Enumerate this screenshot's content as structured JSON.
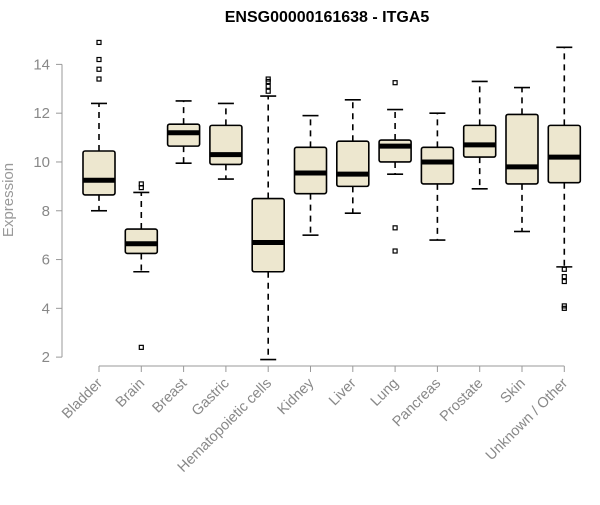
{
  "chart_data": {
    "type": "boxplot",
    "title": "ENSG00000161638 - ITGA5",
    "ylabel": "Expression",
    "xlabel": "",
    "ylim": [
      1.6,
      15.2
    ],
    "yticks": [
      2,
      4,
      6,
      8,
      10,
      12,
      14
    ],
    "grid": false,
    "legend": "none",
    "colors": {
      "box_fill": "#ede7cf",
      "stroke": "#000000",
      "axis_text": "#888888"
    },
    "categories": [
      "Bladder",
      "Brain",
      "Breast",
      "Gastric",
      "Hematopoietic cells",
      "Kidney",
      "Liver",
      "Lung",
      "Pancreas",
      "Prostate",
      "Skin",
      "Unknown / Other"
    ],
    "boxes": [
      {
        "q1": 8.65,
        "median": 9.25,
        "q3": 10.45,
        "whisker_low": 8.0,
        "whisker_high": 12.4,
        "outliers": [
          13.4,
          13.8,
          14.2,
          14.9
        ]
      },
      {
        "q1": 6.25,
        "median": 6.65,
        "q3": 7.25,
        "whisker_low": 5.5,
        "whisker_high": 8.75,
        "outliers": [
          2.4,
          8.95,
          9.1
        ]
      },
      {
        "q1": 10.65,
        "median": 11.2,
        "q3": 11.55,
        "whisker_low": 9.95,
        "whisker_high": 12.5,
        "outliers": []
      },
      {
        "q1": 9.9,
        "median": 10.3,
        "q3": 11.5,
        "whisker_low": 9.3,
        "whisker_high": 12.4,
        "outliers": []
      },
      {
        "q1": 5.5,
        "median": 6.7,
        "q3": 8.5,
        "whisker_low": 1.9,
        "whisker_high": 12.7,
        "outliers": [
          12.9,
          13.1,
          13.3,
          13.4
        ]
      },
      {
        "q1": 8.7,
        "median": 9.55,
        "q3": 10.6,
        "whisker_low": 7.0,
        "whisker_high": 11.9,
        "outliers": []
      },
      {
        "q1": 9.0,
        "median": 9.5,
        "q3": 10.85,
        "whisker_low": 7.9,
        "whisker_high": 12.55,
        "outliers": []
      },
      {
        "q1": 10.0,
        "median": 10.65,
        "q3": 10.9,
        "whisker_low": 9.5,
        "whisker_high": 12.15,
        "outliers": [
          13.25,
          7.3,
          6.35
        ]
      },
      {
        "q1": 9.1,
        "median": 10.0,
        "q3": 10.6,
        "whisker_low": 6.8,
        "whisker_high": 12.0,
        "outliers": []
      },
      {
        "q1": 10.2,
        "median": 10.7,
        "q3": 11.5,
        "whisker_low": 8.9,
        "whisker_high": 13.3,
        "outliers": []
      },
      {
        "q1": 9.1,
        "median": 9.8,
        "q3": 11.95,
        "whisker_low": 7.15,
        "whisker_high": 13.05,
        "outliers": []
      },
      {
        "q1": 9.15,
        "median": 10.2,
        "q3": 11.5,
        "whisker_low": 5.7,
        "whisker_high": 14.7,
        "outliers": [
          5.6,
          5.3,
          5.1,
          4.1,
          4.0
        ]
      }
    ]
  }
}
